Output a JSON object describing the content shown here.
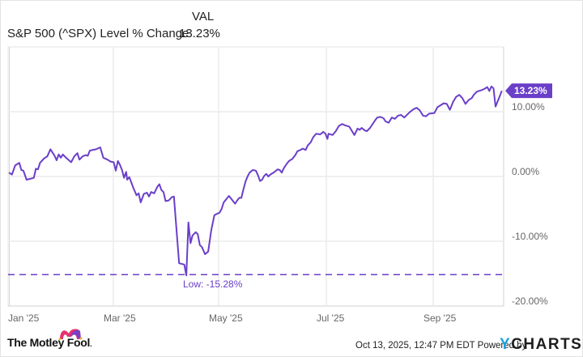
{
  "legend": {
    "column_header": "VAL",
    "series_name": "S&P 500 (^SPX) Level % Change",
    "series_value": "13.23%"
  },
  "colors": {
    "line": "#6a3fc9",
    "grid": "#ececec",
    "axis": "#d4d4d4",
    "tick_text": "#666666",
    "ycharts_accent": "#1a9fe0"
  },
  "chart_data": {
    "type": "line",
    "title": "S&P 500 (^SPX) Level % Change",
    "xlabel": "",
    "ylabel": "",
    "ylim": [
      -20,
      17
    ],
    "grid": true,
    "legend_position": "top-left",
    "x_ticks": [
      "Jan '25",
      "Mar '25",
      "May '25",
      "Jul '25",
      "Sep '25"
    ],
    "y_ticks": [
      "10.00%",
      "0.00%",
      "-10.00%",
      "-20.00%"
    ],
    "series": [
      {
        "name": "S&P 500 (^SPX) Level % Change",
        "last_value": 13.23,
        "points": [
          [
            0,
            0.6
          ],
          [
            3,
            0.3
          ],
          [
            6,
            1.7
          ],
          [
            10,
            2.1
          ],
          [
            12,
            1.0
          ],
          [
            14,
            0.9
          ],
          [
            17,
            -0.5
          ],
          [
            22,
            -0.3
          ],
          [
            24,
            -0.2
          ],
          [
            26,
            1.2
          ],
          [
            28,
            1.1
          ],
          [
            30,
            2.1
          ],
          [
            34,
            2.8
          ],
          [
            37,
            3.1
          ],
          [
            40,
            4.2
          ],
          [
            44,
            3.2
          ],
          [
            46,
            2.5
          ],
          [
            48,
            3.4
          ],
          [
            50,
            2.9
          ],
          [
            52,
            3.4
          ],
          [
            55,
            2.9
          ],
          [
            60,
            2.2
          ],
          [
            63,
            3.1
          ],
          [
            66,
            3.6
          ],
          [
            68,
            2.6
          ],
          [
            71,
            3.1
          ],
          [
            74,
            3.3
          ],
          [
            76,
            3.2
          ],
          [
            78,
            4.0
          ],
          [
            84,
            4.2
          ],
          [
            88,
            4.5
          ],
          [
            91,
            2.9
          ],
          [
            95,
            2.6
          ],
          [
            98,
            2.3
          ],
          [
            101,
            2.2
          ],
          [
            103,
            0.9
          ],
          [
            105,
            2.4
          ],
          [
            107,
            1.8
          ],
          [
            109,
            1.0
          ],
          [
            111,
            -0.2
          ],
          [
            113,
            0.7
          ],
          [
            114,
            -0.5
          ],
          [
            116,
            -0.1
          ],
          [
            120,
            -1.8
          ],
          [
            123,
            -2.9
          ],
          [
            125,
            -2.6
          ],
          [
            127,
            -4.0
          ],
          [
            130,
            -2.7
          ],
          [
            133,
            -2.5
          ],
          [
            135,
            -3.1
          ],
          [
            137,
            -2.4
          ],
          [
            140,
            -2.6
          ],
          [
            143,
            -1.6
          ],
          [
            145,
            -1.2
          ],
          [
            147,
            -2.1
          ],
          [
            149,
            -2.4
          ],
          [
            151,
            -3.8
          ],
          [
            154,
            -3.7
          ],
          [
            157,
            -3.2
          ],
          [
            159,
            -3.1
          ],
          [
            164,
            -13.4
          ],
          [
            169,
            -13.6
          ],
          [
            171,
            -15.28
          ],
          [
            173,
            -7.1
          ],
          [
            175,
            -10.3
          ],
          [
            177,
            -9.1
          ],
          [
            180,
            -8.6
          ],
          [
            182,
            -8.9
          ],
          [
            184,
            -10.6
          ],
          [
            186,
            -10.9
          ],
          [
            189,
            -12.0
          ],
          [
            192,
            -11.6
          ],
          [
            195,
            -8.3
          ],
          [
            198,
            -6.0
          ],
          [
            200,
            -5.8
          ],
          [
            203,
            -5.6
          ],
          [
            205,
            -5.0
          ],
          [
            207,
            -4.0
          ],
          [
            210,
            -3.4
          ],
          [
            212,
            -3.0
          ],
          [
            215,
            -3.6
          ],
          [
            218,
            -4.2
          ],
          [
            220,
            -3.7
          ],
          [
            222,
            -3.3
          ],
          [
            224,
            -3.3
          ],
          [
            226,
            -2.0
          ],
          [
            228,
            -0.8
          ],
          [
            230,
            0.0
          ],
          [
            232,
            0.6
          ],
          [
            235,
            1.0
          ],
          [
            238,
            0.9
          ],
          [
            240,
            0.2
          ],
          [
            242,
            -0.7
          ],
          [
            244,
            -0.5
          ],
          [
            246,
            0.1
          ],
          [
            248,
            0.4
          ],
          [
            250,
            0.0
          ],
          [
            252,
            0.3
          ],
          [
            256,
            0.7
          ],
          [
            259,
            1.1
          ],
          [
            261,
            1.0
          ],
          [
            263,
            0.6
          ],
          [
            265,
            1.3
          ],
          [
            268,
            2.0
          ],
          [
            270,
            2.4
          ],
          [
            273,
            2.7
          ],
          [
            276,
            3.3
          ],
          [
            278,
            3.9
          ],
          [
            281,
            4.1
          ],
          [
            283,
            4.3
          ],
          [
            286,
            4.1
          ],
          [
            288,
            4.8
          ],
          [
            291,
            5.3
          ],
          [
            293,
            6.0
          ],
          [
            296,
            6.6
          ],
          [
            300,
            6.5
          ],
          [
            303,
            6.9
          ],
          [
            305,
            6.6
          ],
          [
            307,
            5.8
          ],
          [
            308,
            6.6
          ],
          [
            312,
            6.4
          ],
          [
            315,
            7.0
          ],
          [
            318,
            7.8
          ],
          [
            321,
            8.1
          ],
          [
            324,
            7.9
          ],
          [
            328,
            7.7
          ],
          [
            333,
            6.4
          ],
          [
            336,
            7.4
          ],
          [
            338,
            7.2
          ],
          [
            340,
            7.5
          ],
          [
            343,
            7.1
          ],
          [
            345,
            7.0
          ],
          [
            348,
            7.5
          ],
          [
            353,
            8.7
          ],
          [
            355,
            9.1
          ],
          [
            358,
            9.2
          ],
          [
            361,
            9.0
          ],
          [
            363,
            8.5
          ],
          [
            366,
            8.3
          ],
          [
            369,
            9.1
          ],
          [
            372,
            8.9
          ],
          [
            375,
            9.4
          ],
          [
            378,
            9.5
          ],
          [
            381,
            9.1
          ],
          [
            386,
            9.9
          ],
          [
            390,
            10.4
          ],
          [
            393,
            10.6
          ],
          [
            396,
            10.2
          ],
          [
            399,
            9.4
          ],
          [
            402,
            9.3
          ],
          [
            405,
            9.7
          ],
          [
            410,
            9.8
          ],
          [
            413,
            10.7
          ],
          [
            419,
            11.3
          ],
          [
            422,
            11.2
          ],
          [
            425,
            10.3
          ],
          [
            428,
            11.5
          ],
          [
            431,
            12.3
          ],
          [
            434,
            12.6
          ],
          [
            437,
            12.1
          ],
          [
            440,
            11.2
          ],
          [
            443,
            11.8
          ],
          [
            446,
            12.1
          ],
          [
            448,
            12.6
          ],
          [
            451,
            13.1
          ],
          [
            455,
            13.3
          ],
          [
            458,
            13.5
          ],
          [
            461,
            13.8
          ],
          [
            463,
            13.2
          ],
          [
            465,
            13.9
          ],
          [
            467,
            13.6
          ],
          [
            469,
            10.8
          ],
          [
            471,
            11.6
          ],
          [
            473,
            12.4
          ],
          [
            475,
            13.23
          ]
        ]
      }
    ],
    "annotations": [
      {
        "type": "hline",
        "label": "Low: -15.28%",
        "value": -15.28,
        "style": "dashed"
      },
      {
        "type": "end-badge",
        "label": "13.23%",
        "value": 13.23
      }
    ]
  },
  "annotations_text": {
    "low_label": "Low: -15.28%",
    "end_badge": "13.23%"
  },
  "axis": {
    "x_ticks": [
      "Jan '25",
      "Mar '25",
      "May '25",
      "Jul '25",
      "Sep '25"
    ],
    "y_ticks": [
      "10.00%",
      "0.00%",
      "-10.00%",
      "-20.00%"
    ]
  },
  "footer": {
    "brand": "The Motley Fool",
    "brand_suffix": ".",
    "timestamp": "Oct 13, 2025, 12:47 PM EDT",
    "powered_by": "Powered by",
    "ycharts_y": "Y",
    "ycharts_rest": "CHARTS"
  }
}
